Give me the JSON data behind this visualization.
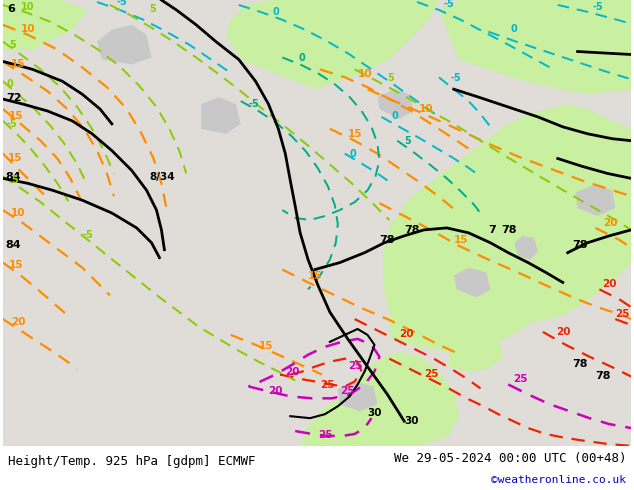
{
  "title_left": "Height/Temp. 925 hPa [gdpm] ECMWF",
  "title_right": "We 29-05-2024 00:00 UTC (00+48)",
  "credit": "©weatheronline.co.uk",
  "fig_width": 6.34,
  "fig_height": 4.9,
  "dpi": 100,
  "bg_color": "#ffffff",
  "light_green": "#c8f0a0",
  "gray_land": "#c8c8c8",
  "light_gray": "#e8e8e8",
  "footer_font_size": 9,
  "credit_color": "#0000cc",
  "title_color": "#000000",
  "orange_color": "#ff8c00",
  "red_color": "#ee2200",
  "magenta_color": "#cc00bb",
  "cyan_color": "#00b8c8",
  "green_color": "#44cc44",
  "teal_color": "#00aa88",
  "ygreen_color": "#88cc00",
  "blue_color": "#2255cc"
}
